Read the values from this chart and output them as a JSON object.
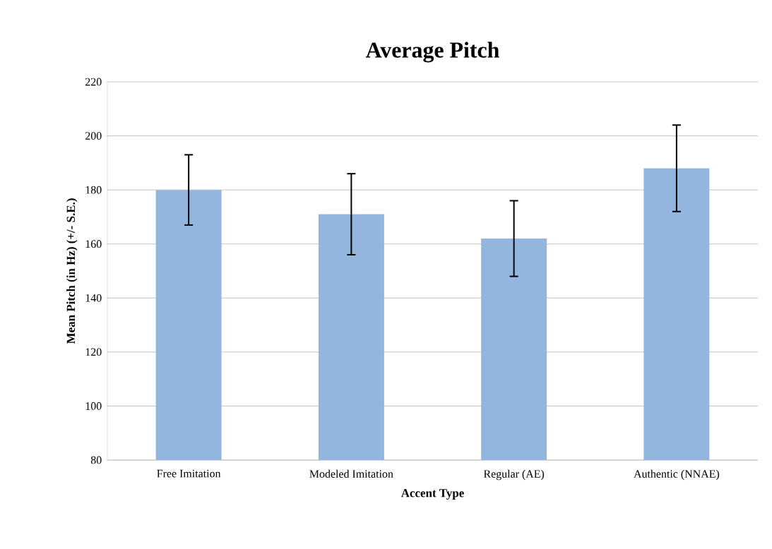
{
  "chart_data": {
    "type": "bar",
    "title": "Average Pitch",
    "xlabel": "Accent Type",
    "ylabel": "Mean Pitch (in Hz) (+/- S.E.)",
    "categories": [
      "Free Imitation",
      "Modeled Imitation",
      "Regular (AE)",
      "Authentic (NNAE)"
    ],
    "values": [
      180,
      171,
      162,
      188
    ],
    "errors": [
      13,
      15,
      14,
      16
    ],
    "color": "#93b6df",
    "ylim": [
      80,
      220
    ],
    "yticks": [
      80,
      100,
      120,
      140,
      160,
      180,
      200,
      220
    ],
    "grid": "y"
  }
}
